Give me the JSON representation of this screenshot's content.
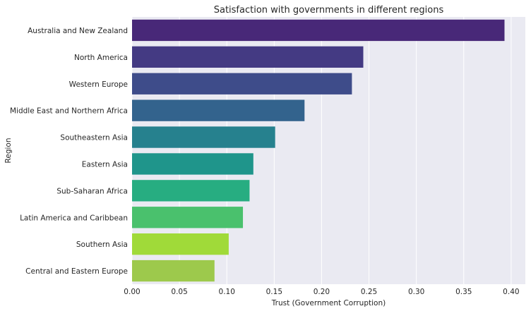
{
  "chart_data": {
    "type": "bar",
    "orientation": "horizontal",
    "title": "Satisfaction with governments in different regions",
    "xlabel": "Trust (Government Corruption)",
    "ylabel": "Region",
    "categories": [
      "Australia and New Zealand",
      "North America",
      "Western Europe",
      "Middle East and Northern Africa",
      "Southeastern Asia",
      "Eastern Asia",
      "Sub-Saharan Africa",
      "Latin America and Caribbean",
      "Southern Asia",
      "Central and Eastern Europe"
    ],
    "values": [
      0.393,
      0.244,
      0.232,
      0.182,
      0.151,
      0.128,
      0.124,
      0.117,
      0.102,
      0.087
    ],
    "colors": [
      "#482878",
      "#443a83",
      "#3e4c8a",
      "#33638d",
      "#26818e",
      "#1f958b",
      "#27ad81",
      "#4ac16d",
      "#a0da39",
      "#9dc94c"
    ],
    "xlim": [
      0,
      0.415
    ],
    "xticks": [
      0.0,
      0.05,
      0.1,
      0.15,
      0.2,
      0.25,
      0.3,
      0.35,
      0.4
    ],
    "xtick_labels": [
      "0.00",
      "0.05",
      "0.10",
      "0.15",
      "0.20",
      "0.25",
      "0.30",
      "0.35",
      "0.40"
    ],
    "grid": true,
    "background": "#eaeaf2"
  }
}
